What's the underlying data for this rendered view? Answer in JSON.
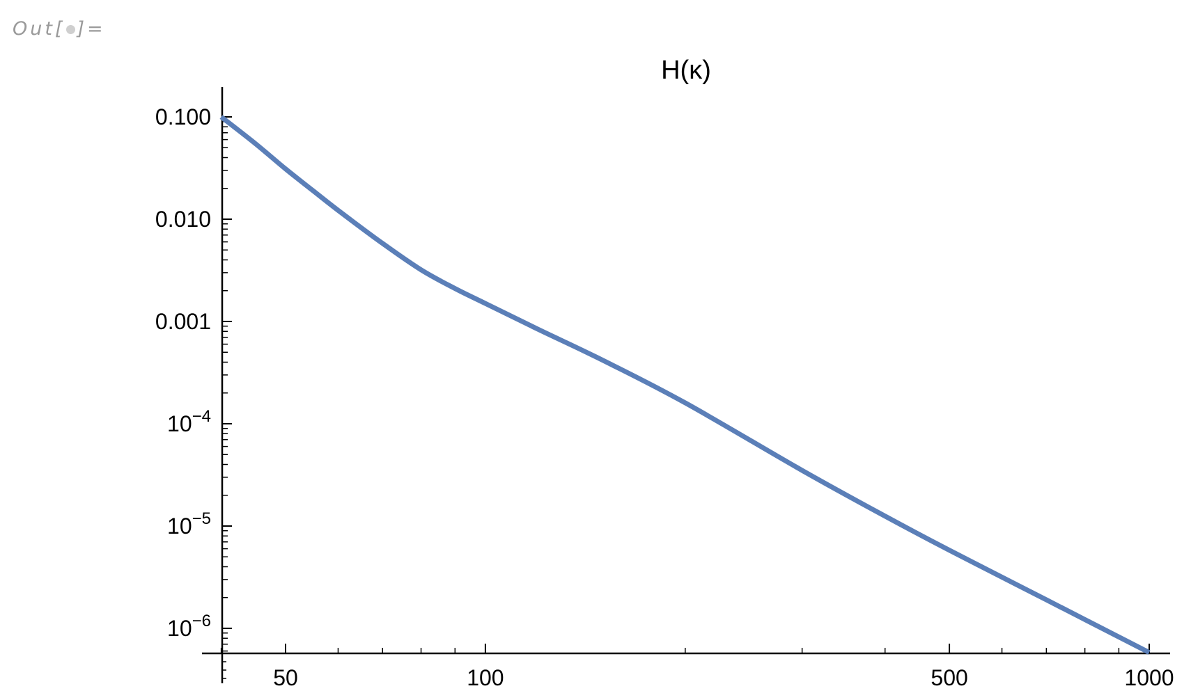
{
  "cell": {
    "out_prefix": "Out[",
    "out_suffix": "]="
  },
  "chart_data": {
    "type": "line",
    "title": "H(κ)",
    "xlabel": "",
    "ylabel": "",
    "xscale": "log",
    "yscale": "log",
    "xlim": [
      40,
      1050
    ],
    "ylim": [
      5.5e-07,
      0.2
    ],
    "line_color": "#5b7fb8",
    "x_ticks": [
      {
        "value": 50,
        "label": "50"
      },
      {
        "value": 100,
        "label": "100"
      },
      {
        "value": 500,
        "label": "500"
      },
      {
        "value": 1000,
        "label": "1000"
      }
    ],
    "y_ticks": [
      {
        "value": 0.1,
        "label": "0.100"
      },
      {
        "value": 0.01,
        "label": "0.010"
      },
      {
        "value": 0.001,
        "label": "0.001"
      },
      {
        "value": 0.0001,
        "base": "10",
        "exp": "−4"
      },
      {
        "value": 1e-05,
        "base": "10",
        "exp": "−5"
      },
      {
        "value": 1e-06,
        "base": "10",
        "exp": "−6"
      }
    ],
    "series": [
      {
        "x": [
          40,
          45,
          50,
          55,
          60,
          70,
          80,
          90,
          100,
          120,
          150,
          200,
          300,
          400,
          500,
          700,
          1000
        ],
        "y": [
          0.1,
          0.055,
          0.031,
          0.019,
          0.0122,
          0.0058,
          0.0032,
          0.0021,
          0.0015,
          0.00084,
          0.00042,
          0.00016,
          3.5e-05,
          1.25e-05,
          5.8e-06,
          1.9e-06,
          5.8e-07
        ]
      }
    ]
  }
}
